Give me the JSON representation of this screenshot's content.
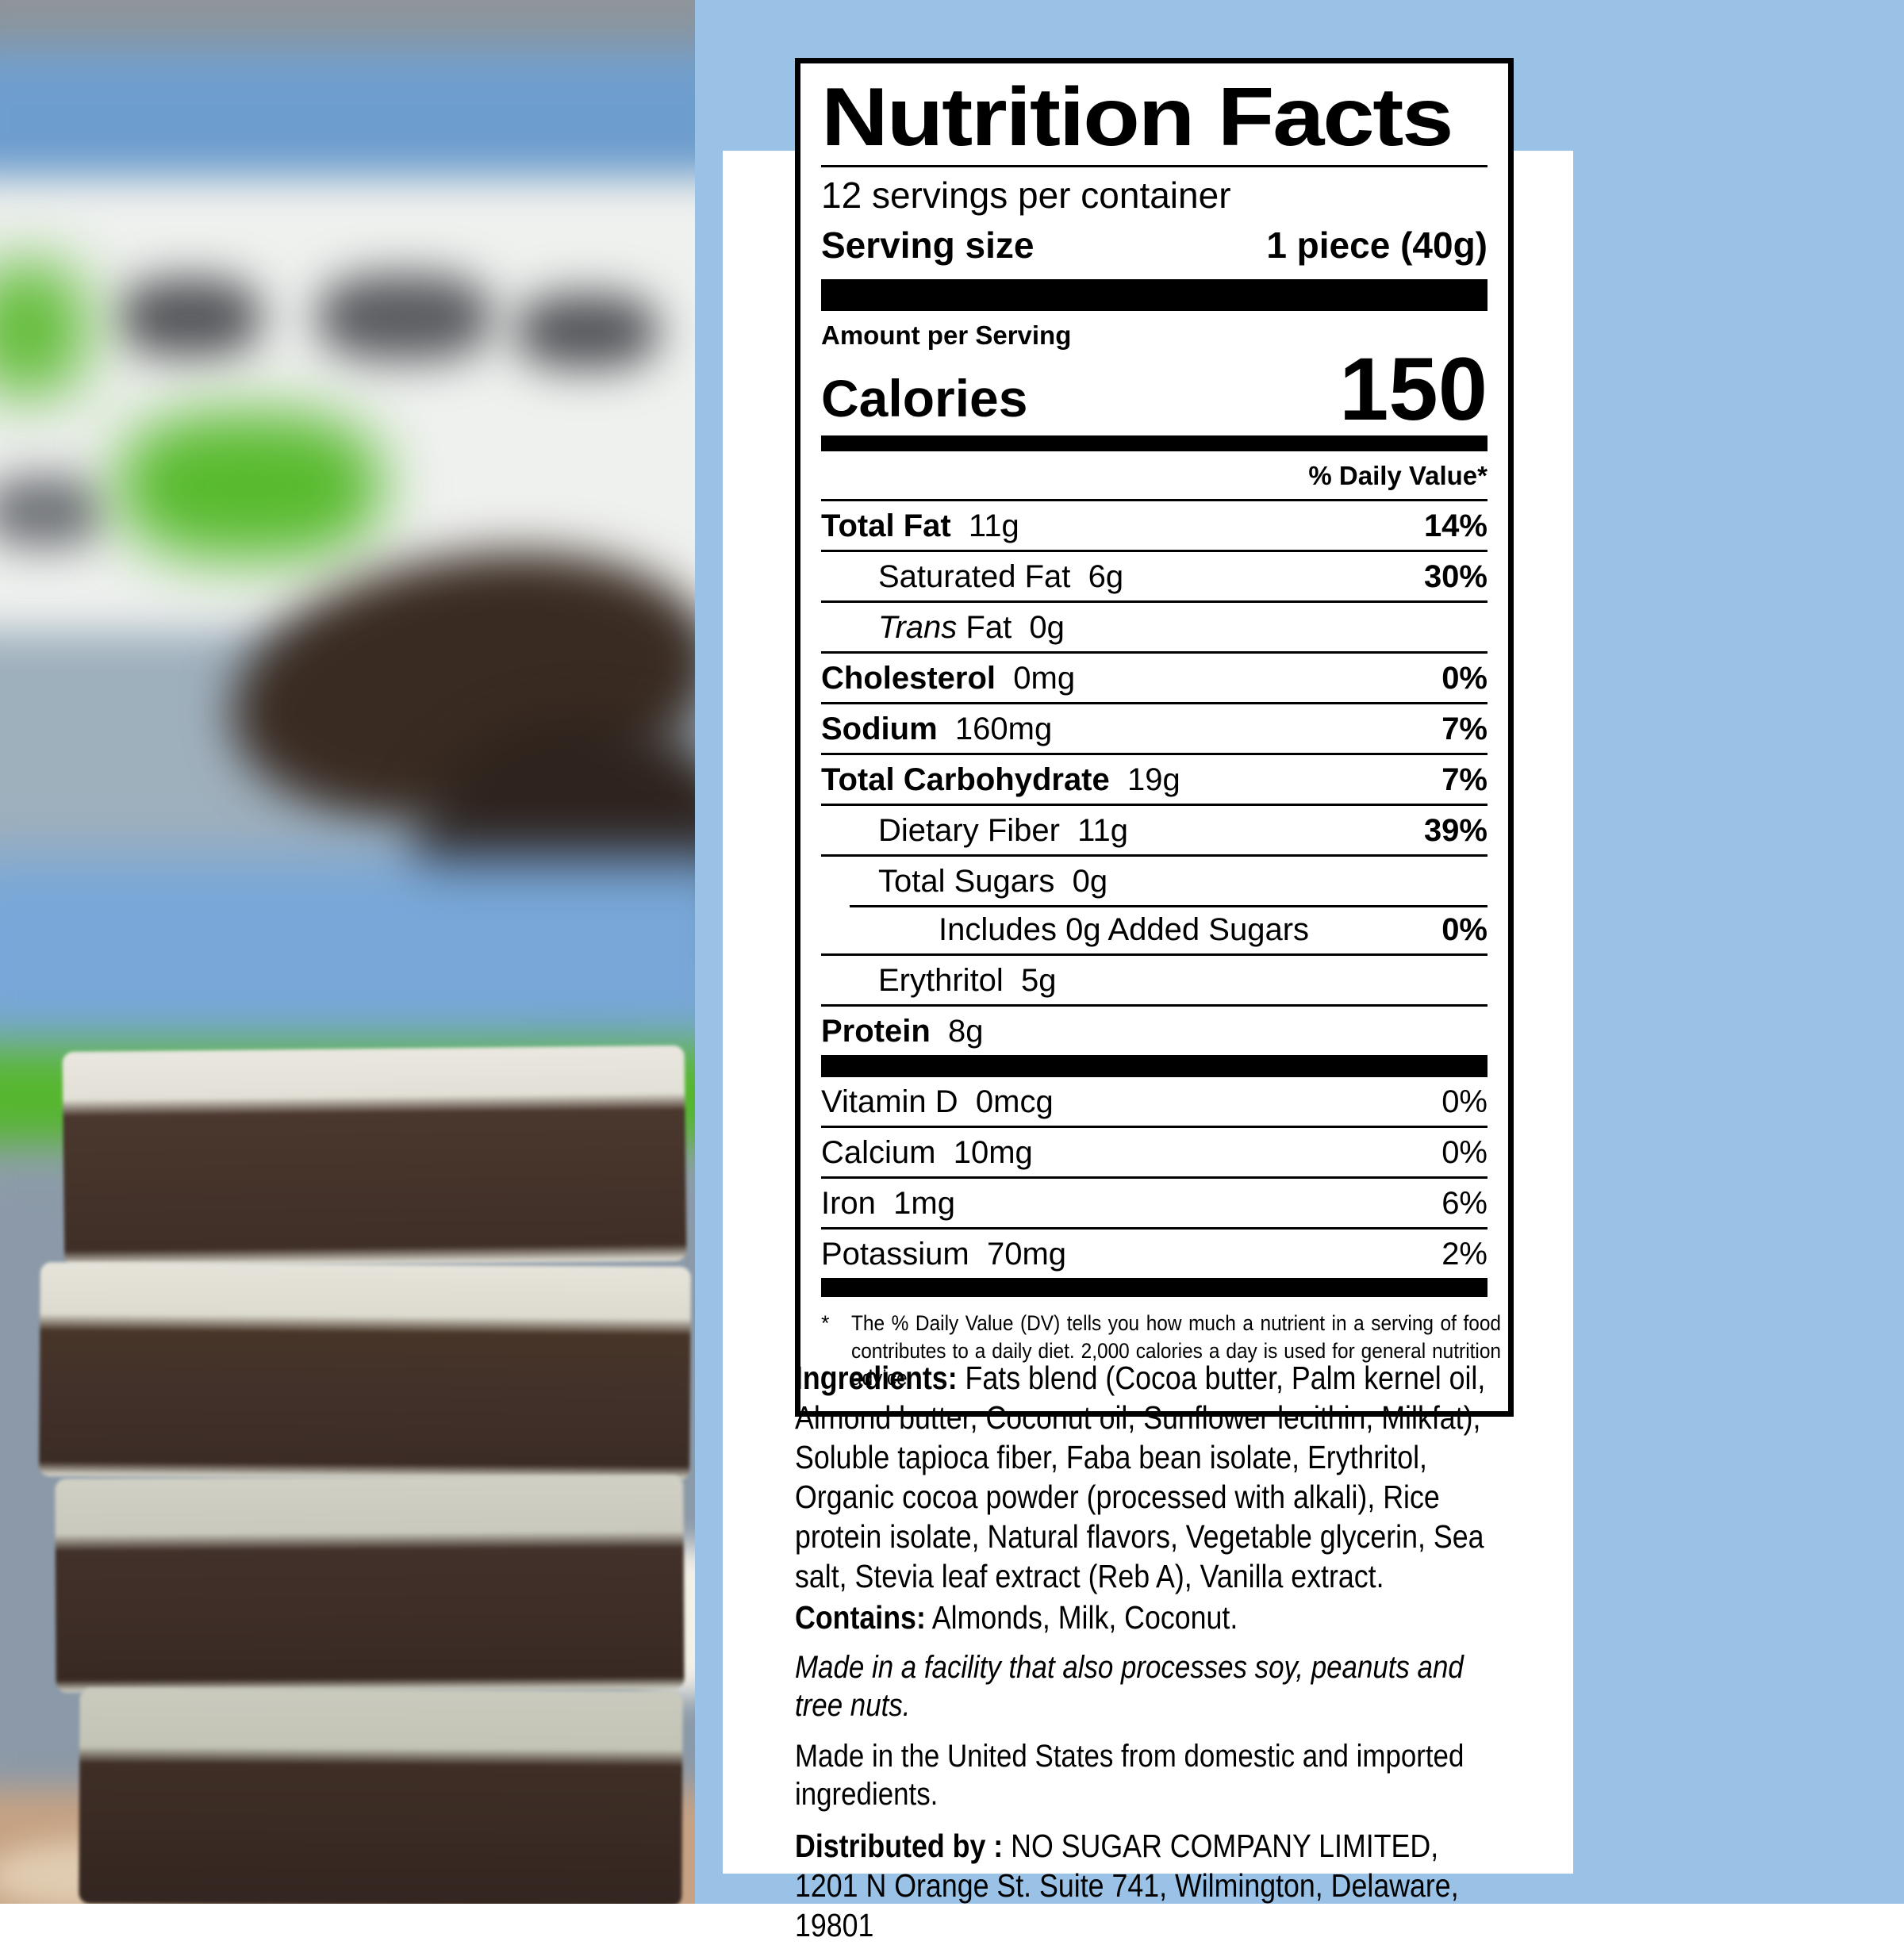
{
  "colors": {
    "page_blue": "#9ac2e6",
    "card_white": "#ffffff",
    "label_black": "#000000"
  },
  "label": {
    "title": "Nutrition Facts",
    "servings_per_container": "12 servings per container",
    "serving_size_label": "Serving size",
    "serving_size_value": "1 piece (40g)",
    "amount_per_serving": "Amount per Serving",
    "calories_label": "Calories",
    "calories_value": "150",
    "daily_value_header": "% Daily Value*",
    "rows": [
      {
        "label": "Total Fat",
        "amount": "11g",
        "dv": "14%",
        "bold": true,
        "dv_bold": true,
        "indent": 0
      },
      {
        "label": "Saturated Fat",
        "amount": "6g",
        "dv": "30%",
        "bold": false,
        "dv_bold": true,
        "indent": 1
      },
      {
        "italic_prefix": "Trans",
        "label": "Fat",
        "amount": "0g",
        "dv": "",
        "bold": false,
        "dv_bold": false,
        "indent": 1
      },
      {
        "label": "Cholesterol",
        "amount": "0mg",
        "dv": "0%",
        "bold": true,
        "dv_bold": true,
        "indent": 0
      },
      {
        "label": "Sodium",
        "amount": "160mg",
        "dv": "7%",
        "bold": true,
        "dv_bold": true,
        "indent": 0
      },
      {
        "label": "Total Carbohydrate",
        "amount": "19g",
        "dv": "7%",
        "bold": true,
        "dv_bold": true,
        "indent": 0
      },
      {
        "label": "Dietary Fiber",
        "amount": "11g",
        "dv": "39%",
        "bold": false,
        "dv_bold": true,
        "indent": 1
      },
      {
        "label": "Total Sugars",
        "amount": "0g",
        "dv": "",
        "bold": false,
        "dv_bold": false,
        "indent": 1,
        "no_sep": true
      },
      {
        "label": "Includes 0g Added Sugars",
        "amount": "",
        "dv": "0%",
        "bold": false,
        "dv_bold": true,
        "indent": 2,
        "sep_indent_top": true
      },
      {
        "label": "Erythritol",
        "amount": "5g",
        "dv": "",
        "bold": false,
        "dv_bold": false,
        "indent": 1
      },
      {
        "label": "Protein",
        "amount": "8g",
        "dv": "",
        "bold": true,
        "dv_bold": false,
        "indent": 0,
        "no_sep": true
      }
    ],
    "vitamins": [
      {
        "label": "Vitamin D",
        "amount": "0mcg",
        "dv": "0%"
      },
      {
        "label": "Calcium",
        "amount": "10mg",
        "dv": "0%"
      },
      {
        "label": "Iron",
        "amount": "1mg",
        "dv": "6%"
      },
      {
        "label": "Potassium",
        "amount": "70mg",
        "dv": "2%"
      }
    ],
    "footnote_mark": "*",
    "footnote": "The % Daily Value (DV) tells you how much a nutrient in a serving of food contributes to a daily diet. 2,000 calories a day is used for general nutrition advice."
  },
  "info": {
    "ingredients_label": "Ingredients:",
    "ingredients_text": " Fats blend (Cocoa butter, Palm kernel oil, Almond butter, Coconut oil, Sunflower lecithin, Milkfat), Soluble tapioca fiber, Faba bean isolate, Erythritol, Organic cocoa powder (processed with alkali), Rice protein isolate, Natural flavors, Vegetable glycerin, Sea salt, Stevia leaf extract (Reb A), Vanilla extract.",
    "contains_label": "Contains:",
    "contains_text": " Almonds, Milk, Coconut.",
    "facility_note": "Made in a facility that also processes soy, peanuts and tree nuts.",
    "origin_note": "Made in the United States from domestic and imported ingredients.",
    "distributor_label": "Distributed by :",
    "distributor_name": " NO SUGAR COMPANY LIMITED,",
    "distributor_address": "1201 N Orange St. Suite 741, Wilmington, Delaware, 19801"
  }
}
